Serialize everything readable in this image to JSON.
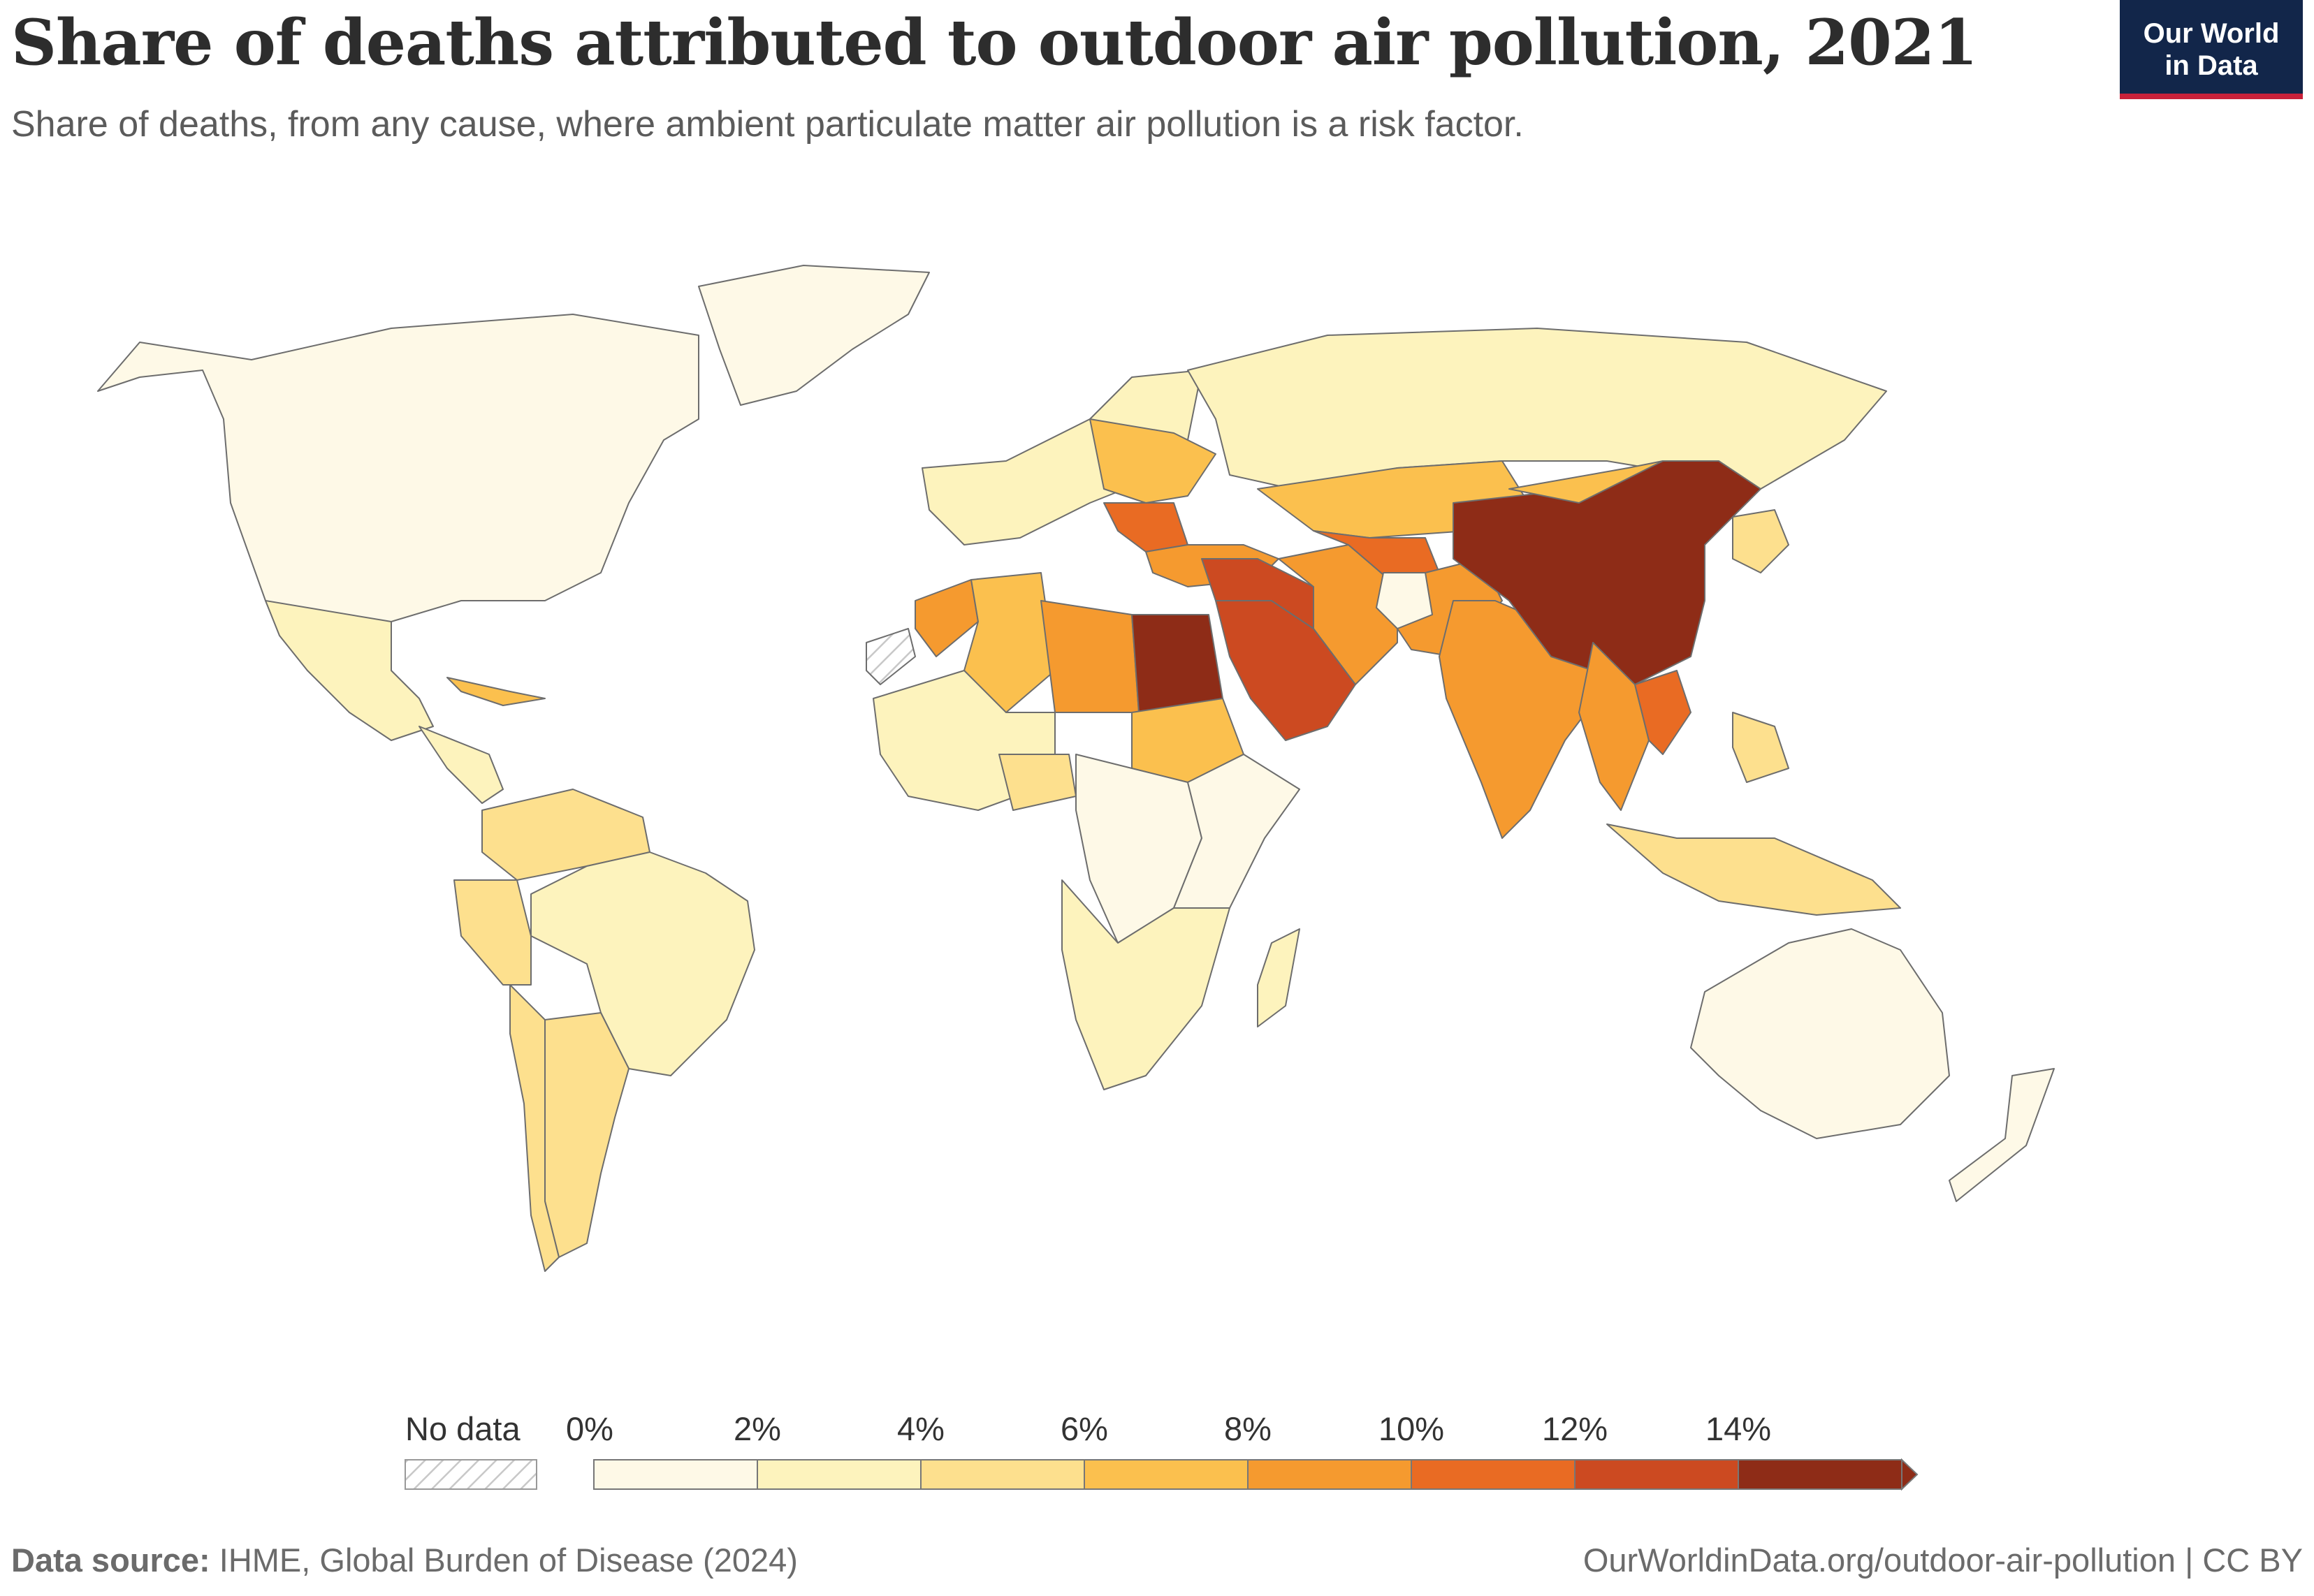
{
  "header": {
    "title": "Share of deaths attributed to outdoor air pollution, 2021",
    "subtitle": "Share of deaths, from any cause, where ambient particulate matter air pollution is a risk factor."
  },
  "logo": {
    "line1": "Our World",
    "line2": "in Data"
  },
  "colors": {
    "navy": "#12264a",
    "accent_red": "#c8213a",
    "scale": [
      "#fef9e7",
      "#fdf3bd",
      "#fde08e",
      "#fbc04e",
      "#f59a2f",
      "#e96b23",
      "#cc4a21",
      "#8e2c17"
    ],
    "no_data_hatch": "#c8c8c8"
  },
  "legend": {
    "no_data_label": "No data",
    "bins": [
      "0%",
      "2%",
      "4%",
      "6%",
      "8%",
      "10%",
      "12%",
      "14%"
    ]
  },
  "map": {
    "type": "choropleth",
    "unit": "%",
    "regions": [
      {
        "name": "North America",
        "bin": 0
      },
      {
        "name": "Greenland",
        "bin": 0
      },
      {
        "name": "Mexico",
        "bin": 1
      },
      {
        "name": "Central America",
        "bin": 1
      },
      {
        "name": "Cuba",
        "bin": 3
      },
      {
        "name": "Colombia / Venezuela",
        "bin": 2
      },
      {
        "name": "Brazil",
        "bin": 1
      },
      {
        "name": "Peru",
        "bin": 2
      },
      {
        "name": "Argentina",
        "bin": 2
      },
      {
        "name": "Chile",
        "bin": 2
      },
      {
        "name": "Western Europe",
        "bin": 1
      },
      {
        "name": "Eastern Europe",
        "bin": 3
      },
      {
        "name": "Balkans",
        "bin": 5
      },
      {
        "name": "Russia",
        "bin": 1
      },
      {
        "name": "Turkey",
        "bin": 4
      },
      {
        "name": "Morocco",
        "bin": 4
      },
      {
        "name": "Algeria",
        "bin": 3
      },
      {
        "name": "Libya",
        "bin": 4
      },
      {
        "name": "Egypt",
        "bin": 7
      },
      {
        "name": "Sudan",
        "bin": 3
      },
      {
        "name": "West Africa",
        "bin": 1
      },
      {
        "name": "Nigeria",
        "bin": 2
      },
      {
        "name": "Central Africa",
        "bin": 0
      },
      {
        "name": "East Africa",
        "bin": 0
      },
      {
        "name": "Southern Africa",
        "bin": 1
      },
      {
        "name": "Madagascar",
        "bin": 1
      },
      {
        "name": "Saudi Arabia",
        "bin": 6
      },
      {
        "name": "Iraq / Syria",
        "bin": 6
      },
      {
        "name": "Iran",
        "bin": 4
      },
      {
        "name": "Central Asia",
        "bin": 3
      },
      {
        "name": "Uzbekistan / Turkmenistan",
        "bin": 5
      },
      {
        "name": "Pakistan",
        "bin": 4
      },
      {
        "name": "Afghanistan",
        "bin": 0
      },
      {
        "name": "India",
        "bin": 4
      },
      {
        "name": "China",
        "bin": 7
      },
      {
        "name": "Mongolia",
        "bin": 3
      },
      {
        "name": "Myanmar / Thailand",
        "bin": 4
      },
      {
        "name": "Vietnam",
        "bin": 5
      },
      {
        "name": "Japan / Korea",
        "bin": 2
      },
      {
        "name": "Indonesia",
        "bin": 2
      },
      {
        "name": "Philippines",
        "bin": 2
      },
      {
        "name": "Australia",
        "bin": 0
      },
      {
        "name": "New Zealand",
        "bin": 0
      },
      {
        "name": "Western Sahara",
        "bin": -1
      }
    ]
  },
  "footer": {
    "source_label": "Data source:",
    "source_text": "IHME, Global Burden of Disease (2024)",
    "url": "OurWorldinData.org/outdoor-air-pollution",
    "license": "CC BY"
  }
}
